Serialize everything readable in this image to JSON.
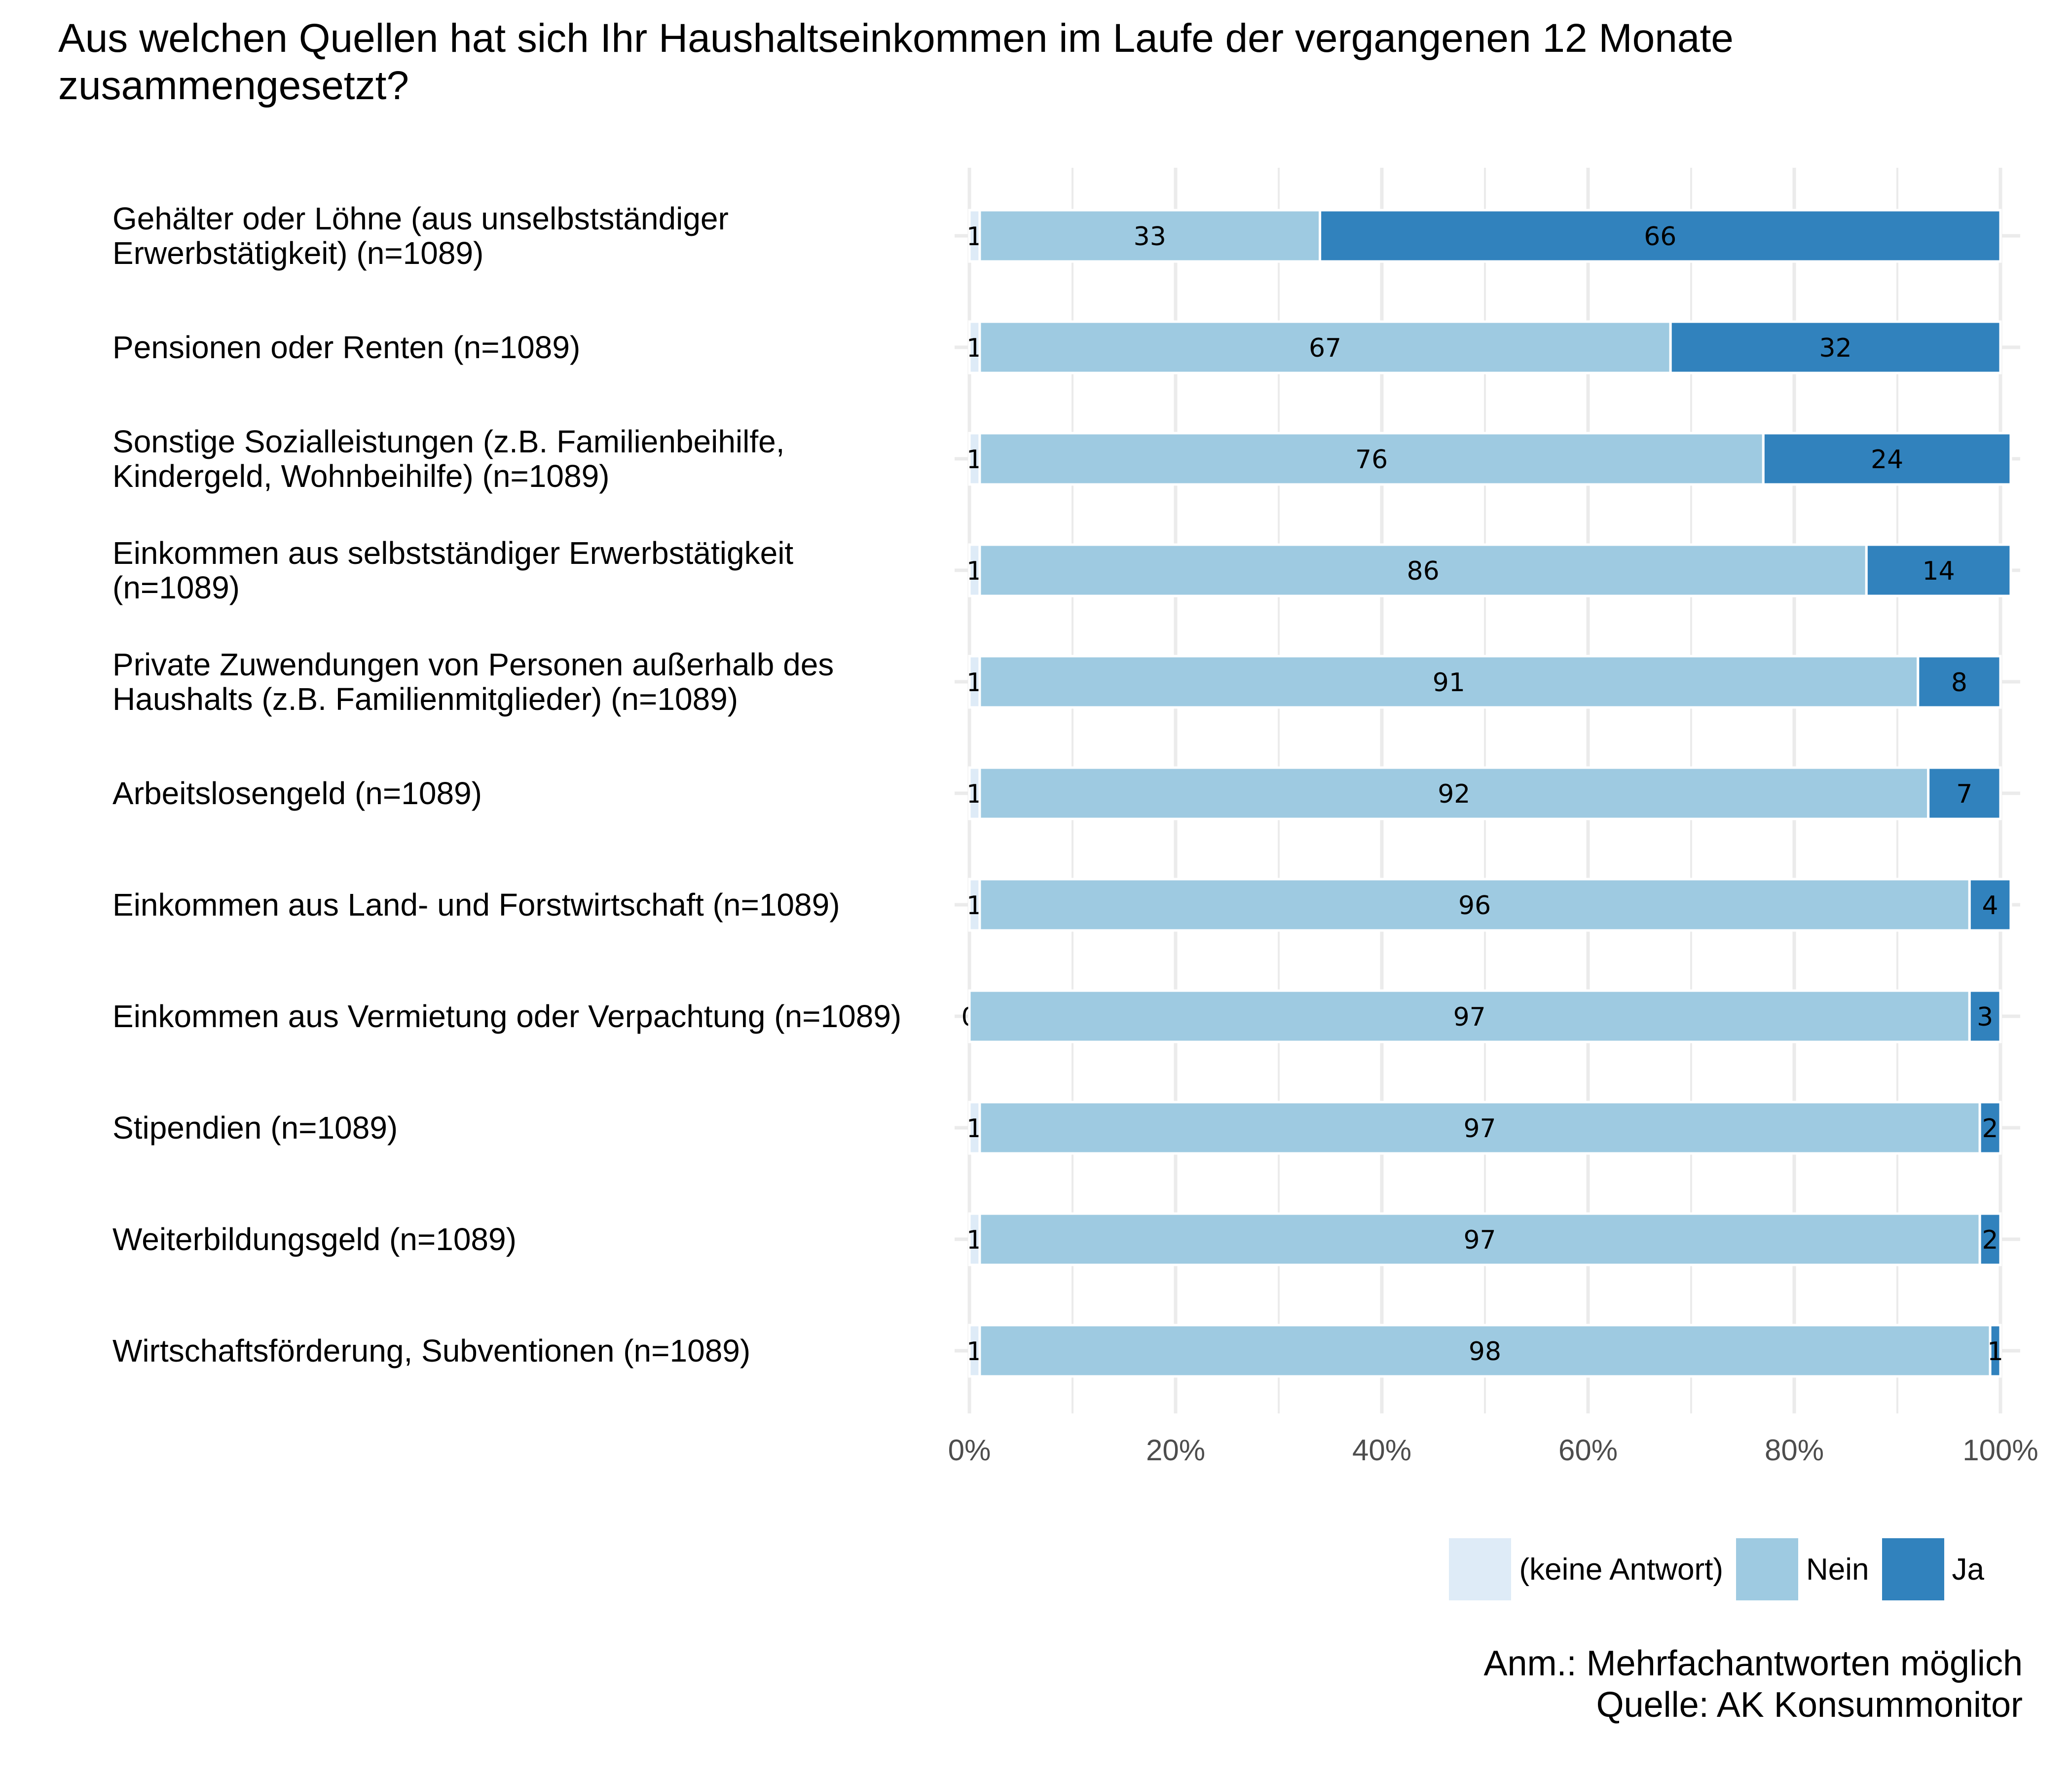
{
  "title": "Aus welchen Quellen hat sich Ihr Haushaltseinkommen im Laufe der vergangenen 12 Monate zusammengesetzt?",
  "chart_data": {
    "type": "bar",
    "orientation": "horizontal",
    "stacked": true,
    "title": "Aus welchen Quellen hat sich Ihr Haushaltseinkommen im Laufe der vergangenen 12 Monate zusammengesetzt?",
    "xlabel": "",
    "ylabel": "",
    "xlim": [
      0,
      100
    ],
    "x_ticks": [
      "0%",
      "20%",
      "40%",
      "60%",
      "80%",
      "100%"
    ],
    "grid": true,
    "legend_position": "bottom-right",
    "categories": [
      [
        "Gehälter oder Löhne (aus unselbstständiger",
        "Erwerbstätigkeit) (n=1089)"
      ],
      [
        "Pensionen oder Renten (n=1089)"
      ],
      [
        "Sonstige Sozialleistungen (z.B. Familienbeihilfe,",
        "Kindergeld, Wohnbeihilfe) (n=1089)"
      ],
      [
        "Einkommen aus selbstständiger Erwerbstätigkeit",
        "(n=1089)"
      ],
      [
        "Private Zuwendungen von Personen außerhalb des",
        "Haushalts (z.B. Familienmitglieder) (n=1089)"
      ],
      [
        "Arbeitslosengeld (n=1089)"
      ],
      [
        "Einkommen aus Land- und Forstwirtschaft (n=1089)"
      ],
      [
        "Einkommen aus Vermietung oder Verpachtung (n=1089)"
      ],
      [
        "Stipendien (n=1089)"
      ],
      [
        "Weiterbildungsgeld (n=1089)"
      ],
      [
        "Wirtschaftsförderung, Subventionen (n=1089)"
      ]
    ],
    "series": [
      {
        "name": "(keine Antwort)",
        "color": "#deebf7",
        "values": [
          1,
          1,
          1,
          1,
          1,
          1,
          1,
          0,
          1,
          1,
          1
        ]
      },
      {
        "name": "Nein",
        "color": "#9ecae1",
        "values": [
          33,
          67,
          76,
          86,
          91,
          92,
          96,
          97,
          97,
          97,
          98
        ]
      },
      {
        "name": "Ja",
        "color": "#3182bd",
        "values": [
          66,
          32,
          24,
          14,
          8,
          7,
          4,
          3,
          2,
          2,
          1
        ]
      }
    ]
  },
  "legend": {
    "items": [
      {
        "label": "(keine Antwort)",
        "color": "#deebf7"
      },
      {
        "label": "Nein",
        "color": "#9ecae1"
      },
      {
        "label": "Ja",
        "color": "#3182bd"
      }
    ]
  },
  "notes": {
    "line1": "Anm.: Mehrfachantworten möglich",
    "line2": "Quelle: AK Konsummonitor"
  }
}
